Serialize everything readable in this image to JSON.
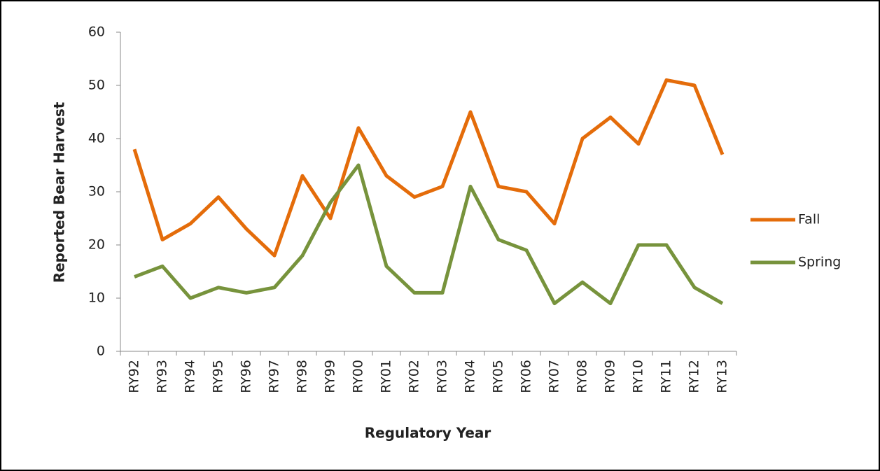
{
  "chart_data": {
    "type": "line",
    "x_label": "Regulatory Year",
    "y_label": "Reported Bear Harvest",
    "categories": [
      "RY92",
      "RY93",
      "RY94",
      "RY95",
      "RY96",
      "RY97",
      "RY98",
      "RY99",
      "RY00",
      "RY01",
      "RY02",
      "RY03",
      "RY04",
      "RY05",
      "RY06",
      "RY07",
      "RY08",
      "RY09",
      "RY10",
      "RY11",
      "RY12",
      "RY13"
    ],
    "series": [
      {
        "name": "Fall",
        "color": "#e46c0a",
        "values": [
          38,
          21,
          24,
          29,
          23,
          18,
          33,
          25,
          42,
          33,
          29,
          31,
          45,
          31,
          30,
          24,
          40,
          44,
          39,
          51,
          50,
          37
        ]
      },
      {
        "name": "Spring",
        "color": "#77933c",
        "values": [
          14,
          16,
          10,
          12,
          11,
          12,
          18,
          28,
          35,
          16,
          11,
          11,
          31,
          21,
          19,
          9,
          13,
          9,
          20,
          20,
          12,
          9
        ]
      }
    ],
    "ylim": [
      0,
      60
    ],
    "yticks": [
      0,
      10,
      20,
      30,
      40,
      50,
      60
    ],
    "grid": false,
    "legend": "right"
  }
}
